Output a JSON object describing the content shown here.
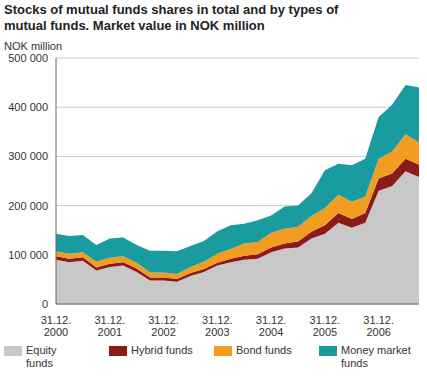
{
  "chart_data": {
    "type": "area",
    "title": "Stocks of mutual funds shares in total and by types of mutual funds. Market value in NOK million",
    "ylabel": "NOK million",
    "stacked": true,
    "grid": true,
    "legend": "bottom",
    "categories": [
      "31.12. 2000",
      null,
      null,
      null,
      "31.12. 2001",
      null,
      null,
      null,
      "31.12. 2002",
      null,
      null,
      null,
      "31.12. 2003",
      null,
      null,
      null,
      "31.12. 2004",
      null,
      null,
      null,
      "31.12. 2005",
      null,
      null,
      null,
      "31.12. 2006",
      null,
      null,
      null
    ],
    "ylim": [
      0,
      500000
    ],
    "yticks": [
      0,
      {
        "value": 100000,
        "label": "100 000"
      },
      {
        "value": 200000,
        "label": "200 000"
      },
      {
        "value": 300000,
        "label": "300 000"
      },
      {
        "value": 400000,
        "label": "400 000"
      },
      {
        "value": 500000,
        "label": "500 000"
      }
    ],
    "series": [
      {
        "name": "Equity funds",
        "color": "#c8c8c8",
        "values": [
          90000,
          85000,
          88000,
          68000,
          75000,
          78000,
          65000,
          48000,
          48000,
          45000,
          57000,
          65000,
          78000,
          85000,
          90000,
          92000,
          105000,
          113000,
          115000,
          133000,
          143000,
          165000,
          155000,
          165000,
          230000,
          240000,
          270000,
          258000
        ]
      },
      {
        "name": "Hybrid funds",
        "color": "#8b1a1a",
        "values": [
          7000,
          7000,
          7000,
          6000,
          7000,
          7000,
          7000,
          6000,
          6000,
          6000,
          6000,
          6000,
          6000,
          7000,
          8000,
          9000,
          10000,
          10000,
          12000,
          14000,
          17000,
          20000,
          18000,
          20000,
          25000,
          25000,
          25000,
          25000
        ]
      },
      {
        "name": "Bond funds",
        "color": "#f39c22",
        "values": [
          10000,
          10000,
          10000,
          12000,
          12000,
          12000,
          12000,
          10000,
          10000,
          10000,
          12000,
          15000,
          18000,
          20000,
          25000,
          25000,
          30000,
          30000,
          30000,
          32000,
          35000,
          37000,
          35000,
          33000,
          40000,
          45000,
          50000,
          45000
        ]
      },
      {
        "name": "Money market funds",
        "color": "#1a9ba0",
        "values": [
          36000,
          36000,
          35000,
          34000,
          39000,
          38000,
          36000,
          44000,
          44000,
          46000,
          43000,
          42000,
          46000,
          48000,
          40000,
          44000,
          35000,
          45000,
          43000,
          46000,
          77000,
          63000,
          74000,
          77000,
          85000,
          95000,
          100000,
          112000
        ]
      }
    ]
  }
}
